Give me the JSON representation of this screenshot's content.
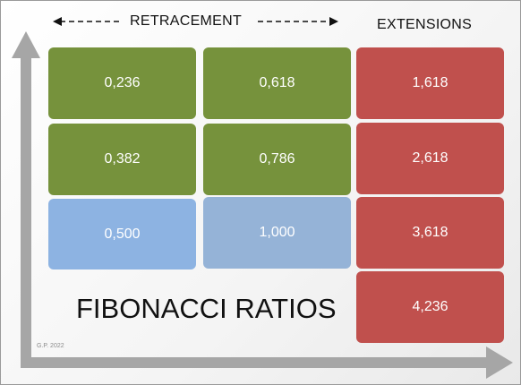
{
  "header": {
    "retracement_label": "RETRACEMENT",
    "extensions_label": "EXTENSIONS"
  },
  "retracement": {
    "col1": [
      "0,236",
      "0,382",
      "0,500"
    ],
    "col2": [
      "0,618",
      "0,786",
      "1,000"
    ]
  },
  "extensions": [
    "1,618",
    "2,618",
    "3,618",
    "4,236"
  ],
  "title": "FIBONACCI RATIOS",
  "credit": "G.P. 2022",
  "colors": {
    "green": "#76923c",
    "blue_light": "#8db3e2",
    "blue_grey": "#95b3d7",
    "red": "#c0504d",
    "axis": "#a6a6a6"
  }
}
